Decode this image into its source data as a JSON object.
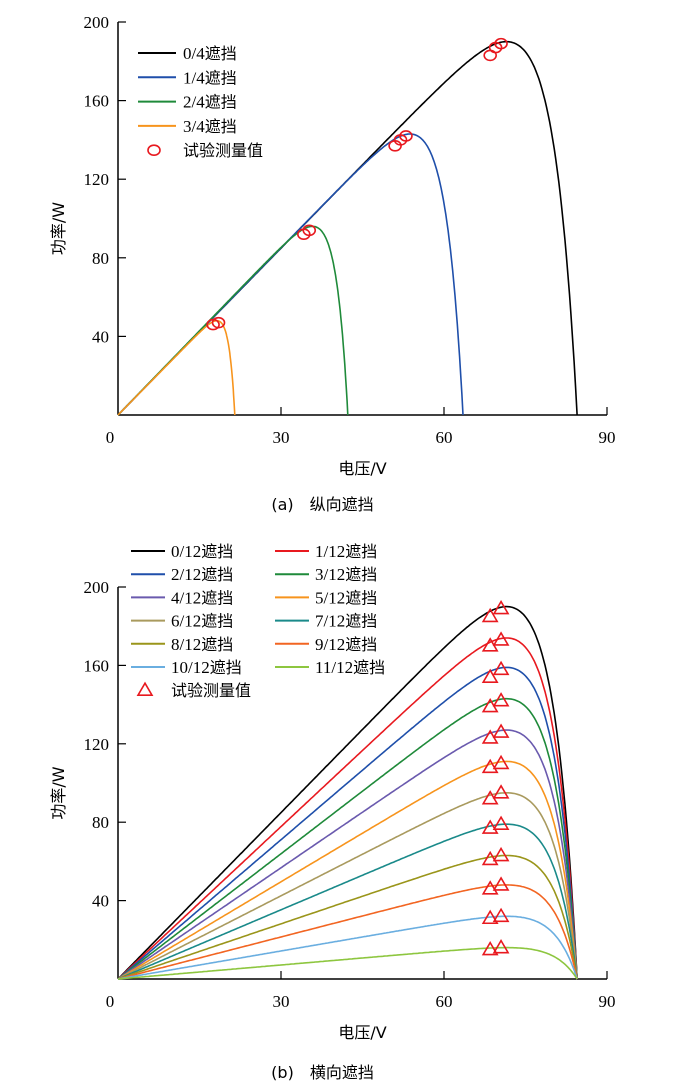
{
  "chart_data": [
    {
      "type": "line",
      "caption": "(a)　纵向遮挡",
      "xlabel": "电压/V",
      "ylabel": "功率/W",
      "xlim": [
        0,
        90
      ],
      "ylim": [
        0,
        200
      ],
      "xticks": [
        0,
        30,
        60,
        90
      ],
      "yticks": [
        40,
        80,
        120,
        160,
        200
      ],
      "legend_position": "top-left",
      "series": [
        {
          "name": "0/4遮挡",
          "color": "#000000",
          "voc": 84.5,
          "pmax": 190
        },
        {
          "name": "1/4遮挡",
          "color": "#1f4faa",
          "voc": 63.5,
          "pmax": 143
        },
        {
          "name": "2/4遮挡",
          "color": "#1f8a3a",
          "voc": 42.3,
          "pmax": 96
        },
        {
          "name": "3/4遮挡",
          "color": "#f7941d",
          "voc": 21.5,
          "pmax": 48
        }
      ],
      "markers": {
        "name": "试验测量值",
        "shape": "circle",
        "color": "#e8191f",
        "points": [
          [
            68.5,
            183
          ],
          [
            69.5,
            187
          ],
          [
            70.5,
            189
          ],
          [
            51,
            137
          ],
          [
            52,
            140
          ],
          [
            53,
            142
          ],
          [
            34.2,
            92
          ],
          [
            35.2,
            94
          ],
          [
            17.5,
            46
          ],
          [
            18.5,
            47
          ]
        ]
      }
    },
    {
      "type": "line",
      "caption": "(b)　横向遮挡",
      "xlabel": "电压/V",
      "ylabel": "功率/W",
      "xlim": [
        0,
        90
      ],
      "ylim": [
        0,
        200
      ],
      "xticks": [
        0,
        30,
        60,
        90
      ],
      "yticks": [
        40,
        80,
        120,
        160,
        200
      ],
      "legend_position": "top-left",
      "series": [
        {
          "name": "0/12遮挡",
          "color": "#000000",
          "voc": 84.5,
          "pmax": 190
        },
        {
          "name": "1/12遮挡",
          "color": "#e8191f",
          "voc": 84.5,
          "pmax": 174
        },
        {
          "name": "2/12遮挡",
          "color": "#1f4faa",
          "voc": 84.5,
          "pmax": 159
        },
        {
          "name": "3/12遮挡",
          "color": "#1f8a3a",
          "voc": 84.5,
          "pmax": 143
        },
        {
          "name": "4/12遮挡",
          "color": "#6a5aae",
          "voc": 84.5,
          "pmax": 127
        },
        {
          "name": "5/12遮挡",
          "color": "#f7941d",
          "voc": 84.5,
          "pmax": 111
        },
        {
          "name": "6/12遮挡",
          "color": "#a99a5e",
          "voc": 84.5,
          "pmax": 95
        },
        {
          "name": "7/12遮挡",
          "color": "#1a8a8a",
          "voc": 84.5,
          "pmax": 79
        },
        {
          "name": "8/12遮挡",
          "color": "#9a951a",
          "voc": 84.5,
          "pmax": 63
        },
        {
          "name": "9/12遮挡",
          "color": "#f26522",
          "voc": 84.5,
          "pmax": 48
        },
        {
          "name": "10/12遮挡",
          "color": "#6aaee0",
          "voc": 84.5,
          "pmax": 32
        },
        {
          "name": "11/12遮挡",
          "color": "#8dc63f",
          "voc": 84.5,
          "pmax": 16
        }
      ],
      "markers": {
        "name": "试验测量值",
        "shape": "triangle",
        "color": "#e8191f",
        "points": [
          [
            68.5,
            185
          ],
          [
            70.5,
            189
          ],
          [
            68.5,
            170
          ],
          [
            70.5,
            173
          ],
          [
            68.5,
            154
          ],
          [
            70.5,
            158
          ],
          [
            68.5,
            139
          ],
          [
            70.5,
            142
          ],
          [
            68.5,
            123
          ],
          [
            70.5,
            126
          ],
          [
            68.5,
            108
          ],
          [
            70.5,
            110
          ],
          [
            68.5,
            92
          ],
          [
            70.5,
            95
          ],
          [
            68.5,
            77
          ],
          [
            70.5,
            79
          ],
          [
            68.5,
            61
          ],
          [
            70.5,
            63
          ],
          [
            68.5,
            46
          ],
          [
            70.5,
            48
          ],
          [
            68.5,
            31
          ],
          [
            70.5,
            32
          ],
          [
            68.5,
            15
          ],
          [
            70.5,
            16
          ]
        ]
      }
    }
  ]
}
